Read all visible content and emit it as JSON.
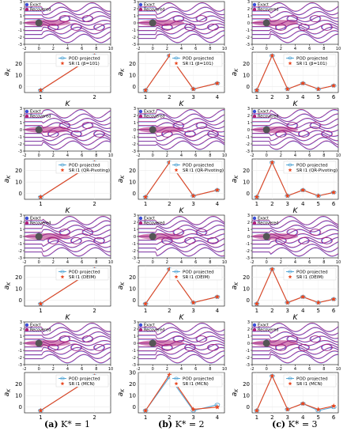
{
  "captions": [
    {
      "tag": "(a)",
      "expr": "K* = 1"
    },
    {
      "tag": "(b)",
      "expr": "K* = 2"
    },
    {
      "tag": "(c)",
      "expr": "K* = 3"
    }
  ],
  "contour_legend": [
    "Exact",
    "Recovered"
  ],
  "contour_axes": {
    "xticks": [
      "-2",
      "0",
      "2",
      "4",
      "6",
      "8",
      "10"
    ],
    "yticks": [
      "-3",
      "-2",
      "-1",
      "0",
      "1",
      "2",
      "3"
    ]
  },
  "colors": {
    "exact": "#3b4fd8",
    "recovered": "#b0207a",
    "pod": "#5aa9d6",
    "sr": "#e8451e",
    "cylinder": "#555555"
  },
  "chart_data": [
    {
      "type": "line",
      "panel": "row1-col1",
      "title": "",
      "xlabel": "K",
      "ylabel": "a_K",
      "categories": [
        1,
        2
      ],
      "ylim": [
        -5,
        30
      ],
      "yticks": [
        0,
        10,
        20
      ],
      "series": [
        {
          "name": "POD projected",
          "values": [
            -3,
            27
          ]
        },
        {
          "name": "SR l1 (β=101)",
          "values": [
            -3,
            27
          ]
        }
      ]
    },
    {
      "type": "line",
      "panel": "row1-col2",
      "title": "",
      "xlabel": "K",
      "ylabel": "a_K",
      "categories": [
        1,
        2,
        3,
        4
      ],
      "ylim": [
        -5,
        30
      ],
      "yticks": [
        0,
        10,
        20
      ],
      "series": [
        {
          "name": "POD projected",
          "values": [
            -3,
            27,
            -2,
            3
          ]
        },
        {
          "name": "SR l1 (β=101)",
          "values": [
            -3,
            27,
            -2,
            3
          ]
        }
      ]
    },
    {
      "type": "line",
      "panel": "row1-col3",
      "title": "",
      "xlabel": "K",
      "ylabel": "a_K",
      "categories": [
        1,
        2,
        3,
        4,
        5,
        6
      ],
      "ylim": [
        -5,
        30
      ],
      "yticks": [
        0,
        10,
        20
      ],
      "series": [
        {
          "name": "POD projected",
          "values": [
            -3,
            27,
            -2,
            3,
            -2,
            1
          ]
        },
        {
          "name": "SR l1 (β=101)",
          "values": [
            -3,
            27,
            -2,
            3,
            -2,
            1
          ]
        }
      ]
    },
    {
      "type": "line",
      "panel": "row2-col1",
      "title": "",
      "xlabel": "K",
      "ylabel": "a_K",
      "categories": [
        1,
        2
      ],
      "ylim": [
        -5,
        30
      ],
      "yticks": [
        0,
        10,
        20
      ],
      "series": [
        {
          "name": "POD projected",
          "values": [
            -3,
            27
          ]
        },
        {
          "name": "SR l1 (QR-Pivoting)",
          "values": [
            -3,
            27
          ]
        }
      ]
    },
    {
      "type": "line",
      "panel": "row2-col2",
      "title": "",
      "xlabel": "K",
      "ylabel": "a_K",
      "categories": [
        1,
        2,
        3,
        4
      ],
      "ylim": [
        -5,
        30
      ],
      "yticks": [
        0,
        10,
        20
      ],
      "series": [
        {
          "name": "POD projected",
          "values": [
            -3,
            27,
            -2,
            3
          ]
        },
        {
          "name": "SR l1 (QR-Pivoting)",
          "values": [
            -3,
            27,
            -2,
            3
          ]
        }
      ]
    },
    {
      "type": "line",
      "panel": "row2-col3",
      "title": "",
      "xlabel": "K",
      "ylabel": "a_K",
      "categories": [
        1,
        2,
        3,
        4,
        5,
        6
      ],
      "ylim": [
        -5,
        30
      ],
      "yticks": [
        0,
        10,
        20
      ],
      "series": [
        {
          "name": "POD projected",
          "values": [
            -3,
            27,
            -2,
            3,
            -2,
            1
          ]
        },
        {
          "name": "SR l1 (QR-Pivoting)",
          "values": [
            -3,
            27,
            -2,
            3,
            -2,
            1
          ]
        }
      ]
    },
    {
      "type": "line",
      "panel": "row3-col1",
      "title": "",
      "xlabel": "K",
      "ylabel": "a_K",
      "categories": [
        1,
        2
      ],
      "ylim": [
        -5,
        30
      ],
      "yticks": [
        0,
        10,
        20
      ],
      "series": [
        {
          "name": "POD projected",
          "values": [
            -3,
            27
          ]
        },
        {
          "name": "SR l1 (DEIM)",
          "values": [
            -3,
            27
          ]
        }
      ]
    },
    {
      "type": "line",
      "panel": "row3-col2",
      "title": "",
      "xlabel": "K",
      "ylabel": "a_K",
      "categories": [
        1,
        2,
        3,
        4
      ],
      "ylim": [
        -5,
        30
      ],
      "yticks": [
        0,
        10,
        20
      ],
      "series": [
        {
          "name": "POD projected",
          "values": [
            -3,
            27,
            -2,
            3
          ]
        },
        {
          "name": "SR l1 (DEIM)",
          "values": [
            -3,
            27,
            -2,
            3
          ]
        }
      ]
    },
    {
      "type": "line",
      "panel": "row3-col3",
      "title": "",
      "xlabel": "K",
      "ylabel": "a_K",
      "categories": [
        1,
        2,
        3,
        4,
        5,
        6
      ],
      "ylim": [
        -5,
        30
      ],
      "yticks": [
        0,
        10,
        20
      ],
      "series": [
        {
          "name": "POD projected",
          "values": [
            -3,
            27,
            -2,
            3,
            -2,
            1
          ]
        },
        {
          "name": "SR l1 (DEIM)",
          "values": [
            -3,
            27,
            -2,
            3,
            -2,
            1
          ]
        }
      ]
    },
    {
      "type": "line",
      "panel": "row4-col1",
      "title": "",
      "xlabel": "K",
      "ylabel": "a_K",
      "categories": [
        1,
        2
      ],
      "ylim": [
        -5,
        30
      ],
      "yticks": [
        0,
        10,
        20
      ],
      "series": [
        {
          "name": "POD projected",
          "values": [
            -3,
            27
          ]
        },
        {
          "name": "SR l1 (MCN)",
          "values": [
            -3,
            27
          ]
        }
      ]
    },
    {
      "type": "line",
      "panel": "row4-col2",
      "title": "",
      "xlabel": "K",
      "ylabel": "a_K",
      "categories": [
        1,
        2,
        3,
        4
      ],
      "ylim": [
        -5,
        30
      ],
      "yticks": [
        0,
        10,
        20,
        30
      ],
      "series": [
        {
          "name": "POD projected",
          "values": [
            -3,
            26,
            -3,
            2
          ]
        },
        {
          "name": "SR l1 (MCN)",
          "values": [
            -3,
            28,
            -2,
            0
          ]
        }
      ]
    },
    {
      "type": "line",
      "panel": "row4-col3",
      "title": "",
      "xlabel": "K",
      "ylabel": "a_K",
      "categories": [
        1,
        2,
        3,
        4,
        5,
        6
      ],
      "ylim": [
        -5,
        30
      ],
      "yticks": [
        0,
        10,
        20
      ],
      "series": [
        {
          "name": "POD projected",
          "values": [
            -3,
            27,
            -2,
            3,
            -3,
            0
          ]
        },
        {
          "name": "SR l1 (MCN)",
          "values": [
            -3,
            27,
            -2,
            3,
            -2,
            1
          ]
        }
      ]
    }
  ]
}
